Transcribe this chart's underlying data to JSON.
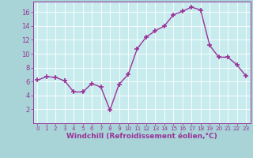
{
  "x": [
    0,
    1,
    2,
    3,
    4,
    5,
    6,
    7,
    8,
    9,
    10,
    11,
    12,
    13,
    14,
    15,
    16,
    17,
    18,
    19,
    20,
    21,
    22,
    23
  ],
  "y": [
    6.2,
    6.7,
    6.6,
    6.1,
    4.5,
    4.5,
    5.7,
    5.2,
    1.9,
    5.6,
    7.0,
    10.7,
    12.4,
    13.3,
    14.0,
    15.6,
    16.1,
    16.7,
    16.3,
    11.2,
    9.5,
    9.5,
    8.4,
    6.8
  ],
  "xlabel": "Windchill (Refroidissement éolien,°C)",
  "line_color": "#993399",
  "marker_color": "#993399",
  "bg_color": "#c8ecee",
  "grid_color": "#ffffff",
  "outer_bg": "#a8d4d8",
  "ylim": [
    0,
    17.5
  ],
  "xlim": [
    -0.5,
    23.5
  ],
  "yticks": [
    2,
    4,
    6,
    8,
    10,
    12,
    14,
    16
  ],
  "xticks": [
    0,
    1,
    2,
    3,
    4,
    5,
    6,
    7,
    8,
    9,
    10,
    11,
    12,
    13,
    14,
    15,
    16,
    17,
    18,
    19,
    20,
    21,
    22,
    23
  ],
  "xlabel_fontsize": 6.5,
  "tick_fontsize": 6,
  "line_width": 1.0,
  "marker_size": 4
}
